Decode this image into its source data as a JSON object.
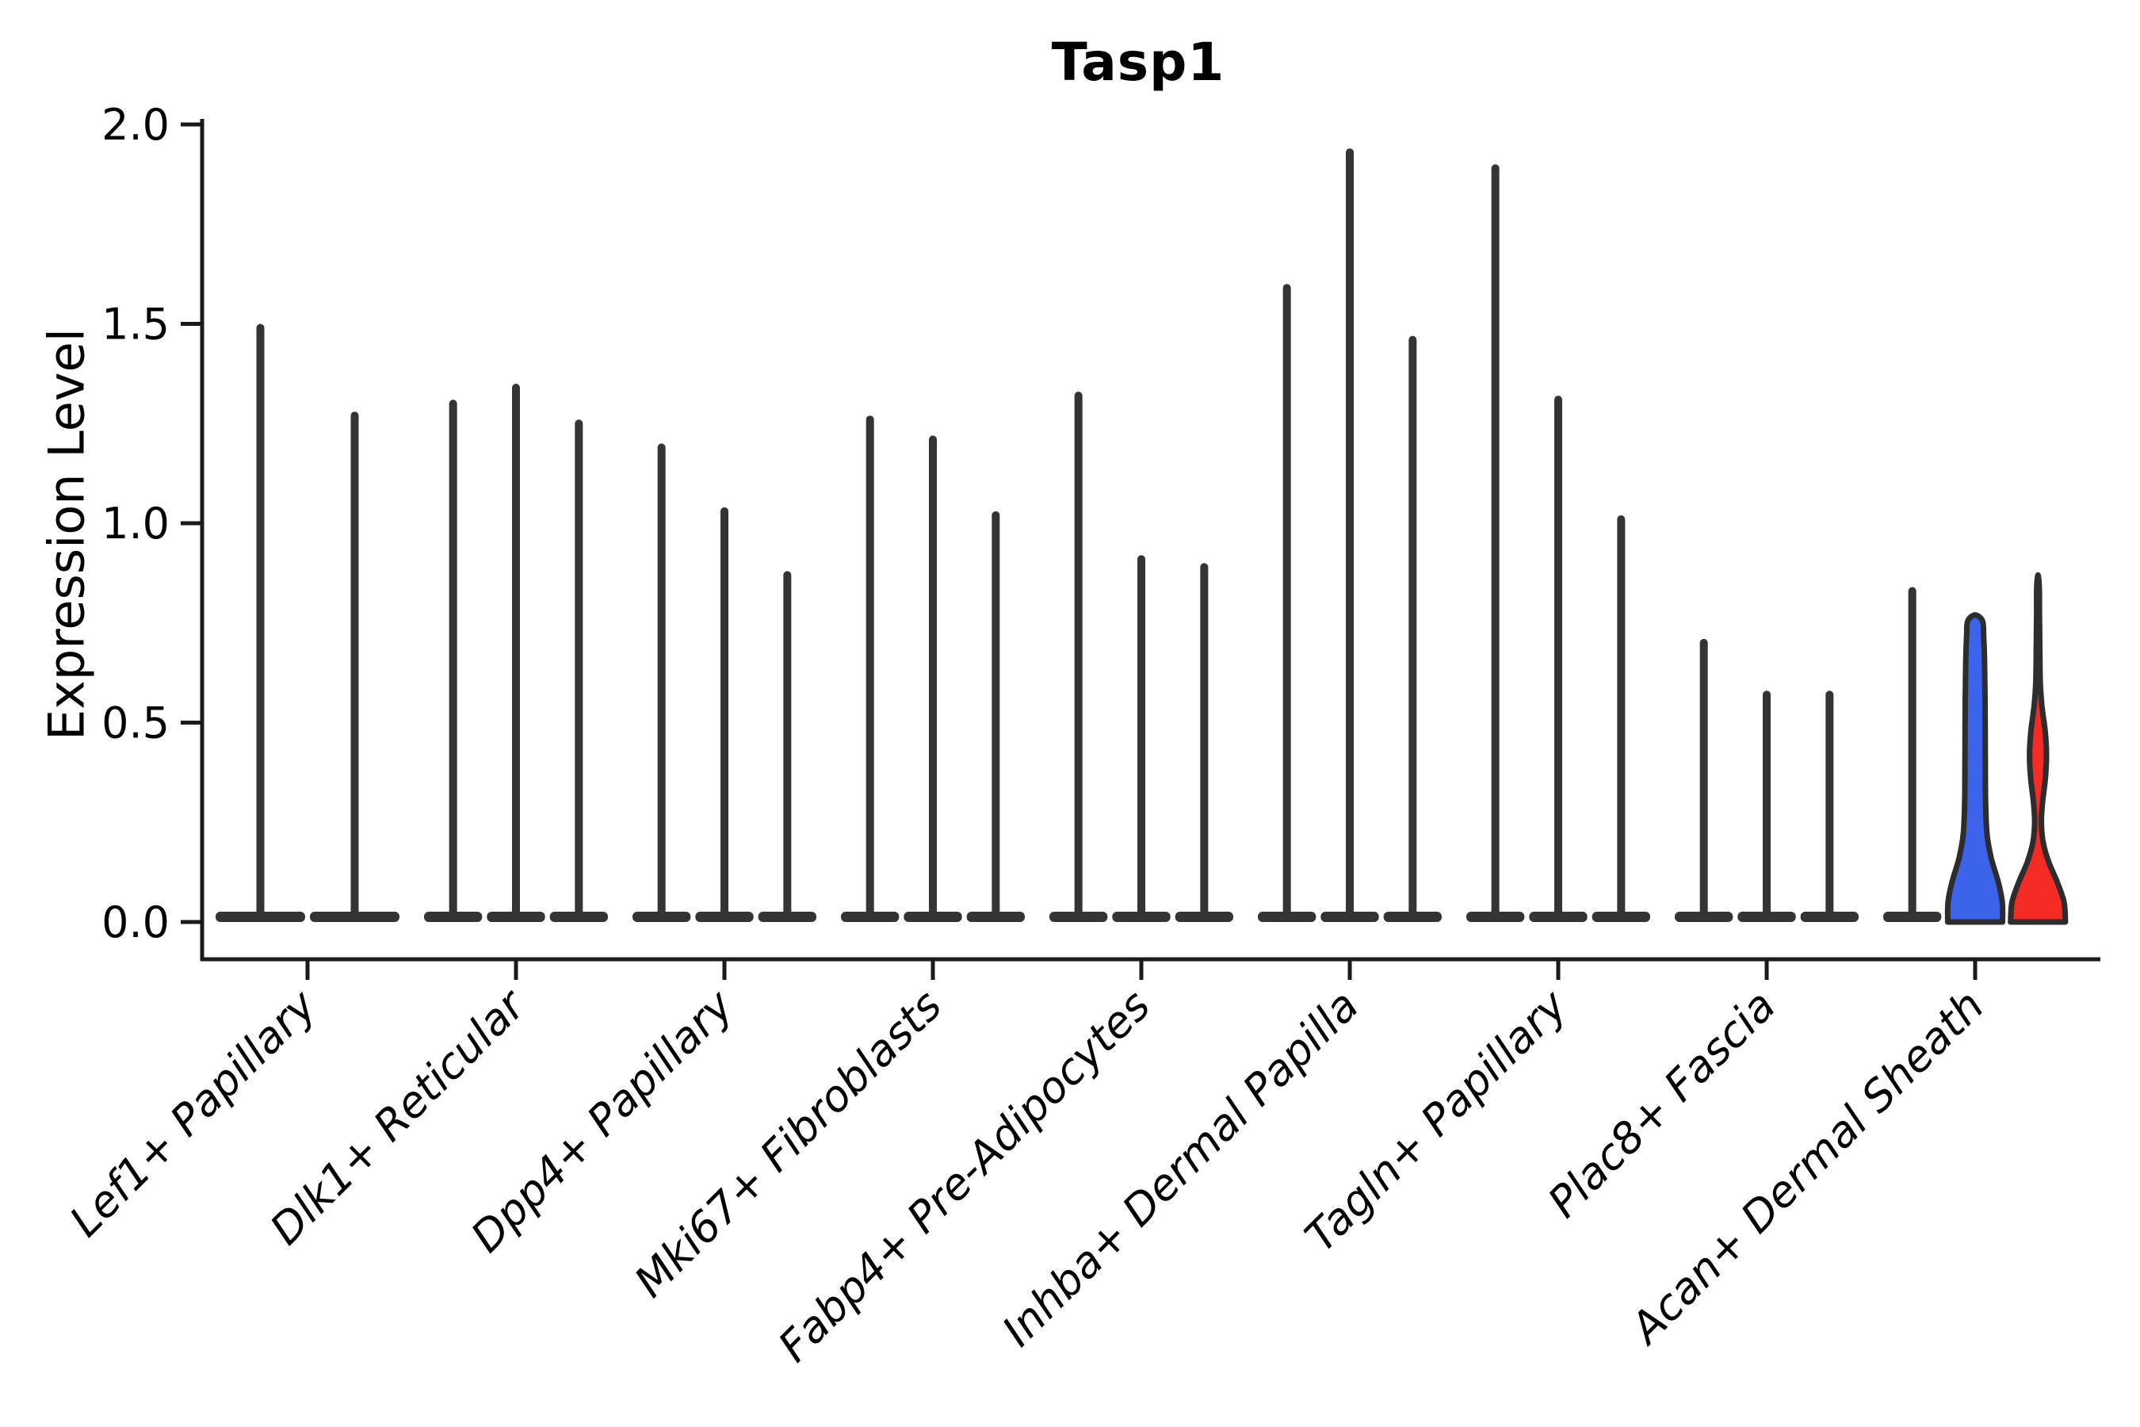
{
  "chart_data": {
    "type": "violin",
    "title": "Tasp1",
    "ylabel": "Expression Level",
    "xlabel": "",
    "ylim": [
      0.0,
      2.0
    ],
    "yticks": [
      0.0,
      0.5,
      1.0,
      1.5,
      2.0
    ],
    "ytick_labels": [
      "0.0",
      "0.5",
      "1.0",
      "1.5",
      "2.0"
    ],
    "grid": false,
    "legend": null,
    "categories": [
      "Lef1+ Papillary",
      "Dlk1+ Reticular",
      "Dpp4+ Papillary",
      "Mki67+ Fibroblasts",
      "Fabp4+ Pre-Adipocytes",
      "Inhba+ Dermal Papilla",
      "Tagln+ Papillary",
      "Plac8+ Fascia",
      "Acan+ Dermal Sheath"
    ],
    "groups": [
      {
        "category": "Lef1+ Papillary",
        "violins": [
          {
            "style": "spike",
            "max": 1.49
          },
          {
            "style": "spike",
            "max": 1.27
          }
        ]
      },
      {
        "category": "Dlk1+ Reticular",
        "violins": [
          {
            "style": "spike",
            "max": 1.3
          },
          {
            "style": "spike",
            "max": 1.34
          },
          {
            "style": "spike",
            "max": 1.25
          }
        ]
      },
      {
        "category": "Dpp4+ Papillary",
        "violins": [
          {
            "style": "spike",
            "max": 1.19
          },
          {
            "style": "spike",
            "max": 1.03
          },
          {
            "style": "spike",
            "max": 0.87
          }
        ]
      },
      {
        "category": "Mki67+ Fibroblasts",
        "violins": [
          {
            "style": "spike",
            "max": 1.26
          },
          {
            "style": "spike",
            "max": 1.21
          },
          {
            "style": "spike",
            "max": 1.02
          }
        ]
      },
      {
        "category": "Fabp4+ Pre-Adipocytes",
        "violins": [
          {
            "style": "spike",
            "max": 1.32
          },
          {
            "style": "spike",
            "max": 0.91
          },
          {
            "style": "spike",
            "max": 0.89
          }
        ]
      },
      {
        "category": "Inhba+ Dermal Papilla",
        "violins": [
          {
            "style": "spike",
            "max": 1.59
          },
          {
            "style": "spike",
            "max": 1.93
          },
          {
            "style": "spike",
            "max": 1.46
          }
        ]
      },
      {
        "category": "Tagln+ Papillary",
        "violins": [
          {
            "style": "spike",
            "max": 1.89
          },
          {
            "style": "spike",
            "max": 1.31
          },
          {
            "style": "spike",
            "max": 1.01
          }
        ]
      },
      {
        "category": "Plac8+ Fascia",
        "violins": [
          {
            "style": "spike",
            "max": 0.7
          },
          {
            "style": "spike",
            "max": 0.57
          },
          {
            "style": "spike",
            "max": 0.57
          }
        ]
      },
      {
        "category": "Acan+ Dermal Sheath",
        "violins": [
          {
            "style": "spike",
            "max": 0.83
          },
          {
            "style": "violin",
            "max": 0.77,
            "color": "#3C64EA",
            "profile": [
              [
                0.0,
                0.97
              ],
              [
                0.05,
                0.96
              ],
              [
                0.1,
                0.82
              ],
              [
                0.16,
                0.57
              ],
              [
                0.22,
                0.42
              ],
              [
                0.3,
                0.37
              ],
              [
                0.42,
                0.36
              ],
              [
                0.56,
                0.35
              ],
              [
                0.66,
                0.33
              ],
              [
                0.72,
                0.3
              ],
              [
                0.755,
                0.26
              ],
              [
                0.77,
                0.0
              ]
            ]
          },
          {
            "style": "violin",
            "max": 0.87,
            "color": "#F42B25",
            "profile": [
              [
                0.0,
                0.97
              ],
              [
                0.05,
                0.92
              ],
              [
                0.1,
                0.68
              ],
              [
                0.15,
                0.38
              ],
              [
                0.2,
                0.18
              ],
              [
                0.25,
                0.12
              ],
              [
                0.3,
                0.16
              ],
              [
                0.36,
                0.26
              ],
              [
                0.42,
                0.3
              ],
              [
                0.48,
                0.25
              ],
              [
                0.54,
                0.14
              ],
              [
                0.6,
                0.08
              ],
              [
                0.7,
                0.06
              ],
              [
                0.78,
                0.05
              ],
              [
                0.84,
                0.045
              ],
              [
                0.87,
                0.0
              ]
            ]
          }
        ]
      }
    ],
    "colors": {
      "spike": "#343434",
      "outline": "#2D2D2D",
      "axis": "#1a1a1a",
      "blue_violin": "#3C64EA",
      "red_violin": "#F42B25"
    }
  }
}
